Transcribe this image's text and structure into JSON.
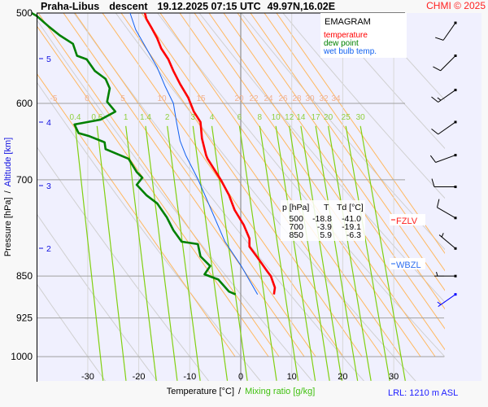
{
  "header": {
    "station": "Praha-Libus",
    "mode": "descent",
    "datetime": "19.12.2025 07:15 UTC",
    "coords": "49.97N,16.02E",
    "copyright": "CHMI © 2025"
  },
  "colors": {
    "temperature": "#ff0000",
    "dew_point": "#008000",
    "wet_bulb": "#1060f0",
    "mixing_ratio": "#80d010",
    "moist_adiabat": "#ffb860",
    "dry_adiabat": "#d0d0d0",
    "plot_bg": "#f0f0fe"
  },
  "chart_data": {
    "type": "line",
    "title": "EMAGRAM",
    "xlabel": "Temperature [°C]",
    "xlabel2": "Mixing ratio [g/kg]",
    "ylabel": "Pressure [hPa]",
    "ylabel2": "Altitude [km]",
    "separator": "/",
    "xlim": [
      -40,
      47
    ],
    "ylim": [
      500,
      1050
    ],
    "x_ticks": [
      -30,
      -20,
      -10,
      0,
      10,
      20,
      30
    ],
    "y_ticks": [
      500,
      600,
      700,
      850,
      925,
      1000
    ],
    "altitude_ticks": [
      5,
      4,
      3,
      2
    ],
    "legend": [
      "temperature",
      "dew point",
      "wet bulb temp."
    ],
    "legend_position": "top-right",
    "series": [
      {
        "name": "temperature",
        "points": [
          [
            500,
            -18.8
          ],
          [
            506,
            -18.5
          ],
          [
            516,
            -17.4
          ],
          [
            526,
            -16.4
          ],
          [
            537,
            -15.6
          ],
          [
            549,
            -14.2
          ],
          [
            562,
            -13.2
          ],
          [
            577,
            -11.9
          ],
          [
            593,
            -10.3
          ],
          [
            610,
            -9.2
          ],
          [
            623,
            -7.9
          ],
          [
            644,
            -7.6
          ],
          [
            666,
            -6.8
          ],
          [
            671,
            -6.5
          ],
          [
            691,
            -4.7
          ],
          [
            700,
            -3.9
          ],
          [
            722,
            -2.3
          ],
          [
            744,
            -1.2
          ],
          [
            767,
            0.6
          ],
          [
            788,
            1.7
          ],
          [
            801,
            1.7
          ],
          [
            819,
            3.3
          ],
          [
            842,
            5.2
          ],
          [
            850,
            5.9
          ],
          [
            870,
            6.7
          ],
          [
            882,
            6.5
          ]
        ]
      },
      {
        "name": "dew point",
        "points": [
          [
            500,
            -41.0
          ],
          [
            503,
            -40.0
          ],
          [
            514,
            -37.6
          ],
          [
            523,
            -35.5
          ],
          [
            532,
            -32.9
          ],
          [
            545,
            -32.1
          ],
          [
            549,
            -30.2
          ],
          [
            562,
            -28.6
          ],
          [
            571,
            -26.5
          ],
          [
            582,
            -25.7
          ],
          [
            598,
            -26.2
          ],
          [
            610,
            -24.6
          ],
          [
            620,
            -27.5
          ],
          [
            626,
            -32.6
          ],
          [
            637,
            -31.8
          ],
          [
            641,
            -29.7
          ],
          [
            649,
            -26.7
          ],
          [
            658,
            -26.5
          ],
          [
            671,
            -22.0
          ],
          [
            689,
            -20.4
          ],
          [
            697,
            -19.3
          ],
          [
            707,
            -20.4
          ],
          [
            722,
            -18.5
          ],
          [
            734,
            -16.4
          ],
          [
            755,
            -14.5
          ],
          [
            775,
            -13.2
          ],
          [
            793,
            -11.6
          ],
          [
            797,
            -8.4
          ],
          [
            817,
            -7.9
          ],
          [
            833,
            -6.0
          ],
          [
            847,
            -7.1
          ],
          [
            856,
            -4.4
          ],
          [
            877,
            -2.3
          ],
          [
            882,
            -1.0
          ]
        ]
      },
      {
        "name": "wet bulb temp.",
        "points": [
          [
            500,
            -21.7
          ],
          [
            517,
            -20.6
          ],
          [
            537,
            -18.5
          ],
          [
            558,
            -16.4
          ],
          [
            580,
            -14.8
          ],
          [
            600,
            -13.2
          ],
          [
            623,
            -12.6
          ],
          [
            647,
            -11.9
          ],
          [
            666,
            -10.8
          ],
          [
            699,
            -8.4
          ],
          [
            726,
            -6.8
          ],
          [
            793,
            -3.1
          ],
          [
            833,
            0.1
          ],
          [
            882,
            3.3
          ]
        ]
      }
    ],
    "moist_adiabat_labels": [
      "-5",
      "0",
      "5",
      "10",
      "15",
      "20",
      "22",
      "24",
      "26",
      "28",
      "30",
      "32",
      "34"
    ],
    "mixing_ratio_labels": [
      "0.4",
      "0.6",
      "1",
      "1.4",
      "2",
      "3",
      "4",
      "6",
      "8",
      "10",
      "12",
      "14",
      "17",
      "20",
      "25",
      "30"
    ],
    "mixing_ratio_values": [
      0.4,
      0.6,
      1,
      1.4,
      2,
      3,
      4,
      6,
      8,
      10,
      12,
      14,
      17,
      20,
      25,
      30
    ],
    "dry_adiabat_theta": [
      -30,
      -20,
      -10,
      0,
      10,
      20,
      30,
      40,
      50,
      60,
      70,
      80,
      90
    ],
    "wind": [
      {
        "p": 510,
        "dir": 215,
        "kt": 10
      },
      {
        "p": 545,
        "dir": 225,
        "kt": 10
      },
      {
        "p": 584,
        "dir": 235,
        "kt": 15
      },
      {
        "p": 623,
        "dir": 235,
        "kt": 10
      },
      {
        "p": 666,
        "dir": 250,
        "kt": 10
      },
      {
        "p": 710,
        "dir": 270,
        "kt": 10
      },
      {
        "p": 756,
        "dir": 300,
        "kt": 10
      },
      {
        "p": 804,
        "dir": 310,
        "kt": 5
      },
      {
        "p": 850,
        "dir": 270,
        "kt": 5
      },
      {
        "p": 882,
        "dir": 235,
        "kt": 5,
        "surface": true
      }
    ],
    "levels": [
      {
        "name": "FZLV",
        "label": "FZLV",
        "p": 755
      },
      {
        "name": "WBZL",
        "label": "WBZL",
        "p": 822
      }
    ],
    "table": {
      "headers": [
        "p [hPa]",
        "T",
        "Td [°C]"
      ],
      "rows": [
        [
          "500",
          "-18.8",
          "-41.0"
        ],
        [
          "700",
          "-3.9",
          "-19.1"
        ],
        [
          "850",
          "5.9",
          "-6.3"
        ]
      ]
    },
    "lrl": "LRL: 1210 m ASL"
  }
}
